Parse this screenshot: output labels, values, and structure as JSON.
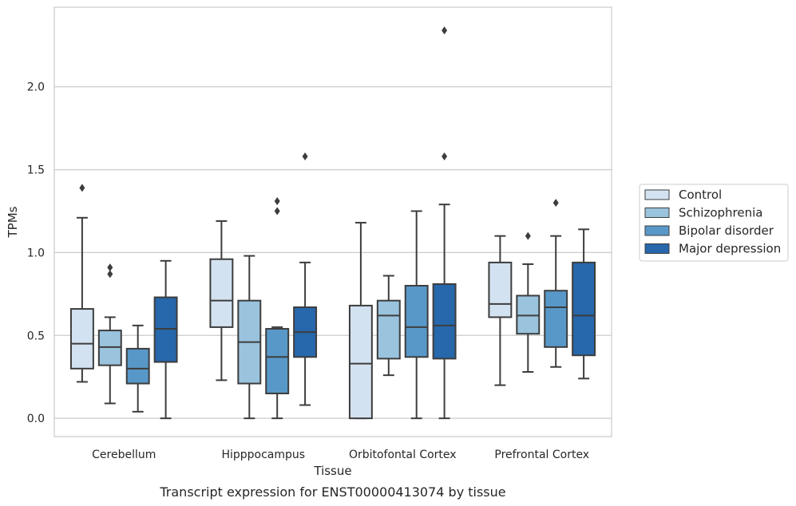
{
  "caption": "Transcript expression for ENST00000413074 by tissue",
  "chart_data": {
    "type": "box",
    "xlabel": "Tissue",
    "ylabel": "TPMs",
    "ylim": [
      -0.11,
      2.48
    ],
    "yticks": [
      "0.0",
      "0.5",
      "1.0",
      "1.5",
      "2.0"
    ],
    "grid": "horizontal",
    "legend_position": "right",
    "categories": [
      "Cerebellum",
      "Hipppocampus",
      "Orbitofontal Cortex",
      "Prefrontal Cortex"
    ],
    "series": [
      {
        "name": "Control",
        "color": "#d3e2f1",
        "boxes": [
          {
            "whislo": 0.22,
            "q1": 0.3,
            "median": 0.45,
            "q3": 0.66,
            "whishi": 1.21,
            "outliers": [
              1.39
            ]
          },
          {
            "whislo": 0.23,
            "q1": 0.55,
            "median": 0.71,
            "q3": 0.96,
            "whishi": 1.19,
            "outliers": []
          },
          {
            "whislo": 0.0,
            "q1": 0.0,
            "median": 0.33,
            "q3": 0.68,
            "whishi": 1.18,
            "outliers": []
          },
          {
            "whislo": 0.2,
            "q1": 0.61,
            "median": 0.69,
            "q3": 0.94,
            "whishi": 1.1,
            "outliers": []
          }
        ]
      },
      {
        "name": "Schizophrenia",
        "color": "#9ac3de",
        "boxes": [
          {
            "whislo": 0.09,
            "q1": 0.32,
            "median": 0.43,
            "q3": 0.53,
            "whishi": 0.61,
            "outliers": [
              0.87,
              0.91
            ]
          },
          {
            "whislo": 0.0,
            "q1": 0.21,
            "median": 0.46,
            "q3": 0.71,
            "whishi": 0.98,
            "outliers": []
          },
          {
            "whislo": 0.26,
            "q1": 0.36,
            "median": 0.62,
            "q3": 0.71,
            "whishi": 0.86,
            "outliers": []
          },
          {
            "whislo": 0.28,
            "q1": 0.51,
            "median": 0.62,
            "q3": 0.74,
            "whishi": 0.93,
            "outliers": [
              1.1
            ]
          }
        ]
      },
      {
        "name": "Bipolar disorder",
        "color": "#5898c8",
        "boxes": [
          {
            "whislo": 0.04,
            "q1": 0.21,
            "median": 0.3,
            "q3": 0.42,
            "whishi": 0.56,
            "outliers": []
          },
          {
            "whislo": 0.0,
            "q1": 0.15,
            "median": 0.37,
            "q3": 0.54,
            "whishi": 0.55,
            "outliers": [
              1.25,
              1.31
            ]
          },
          {
            "whislo": 0.0,
            "q1": 0.37,
            "median": 0.55,
            "q3": 0.8,
            "whishi": 1.25,
            "outliers": []
          },
          {
            "whislo": 0.31,
            "q1": 0.43,
            "median": 0.67,
            "q3": 0.77,
            "whishi": 1.1,
            "outliers": [
              1.3
            ]
          }
        ]
      },
      {
        "name": "Major depression",
        "color": "#2767ab",
        "boxes": [
          {
            "whislo": 0.0,
            "q1": 0.34,
            "median": 0.54,
            "q3": 0.73,
            "whishi": 0.95,
            "outliers": []
          },
          {
            "whislo": 0.08,
            "q1": 0.37,
            "median": 0.52,
            "q3": 0.67,
            "whishi": 0.94,
            "outliers": [
              1.58
            ]
          },
          {
            "whislo": 0.0,
            "q1": 0.36,
            "median": 0.56,
            "q3": 0.81,
            "whishi": 1.29,
            "outliers": [
              1.58,
              2.34
            ]
          },
          {
            "whislo": 0.24,
            "q1": 0.38,
            "median": 0.62,
            "q3": 0.94,
            "whishi": 1.14,
            "outliers": []
          }
        ]
      }
    ]
  }
}
